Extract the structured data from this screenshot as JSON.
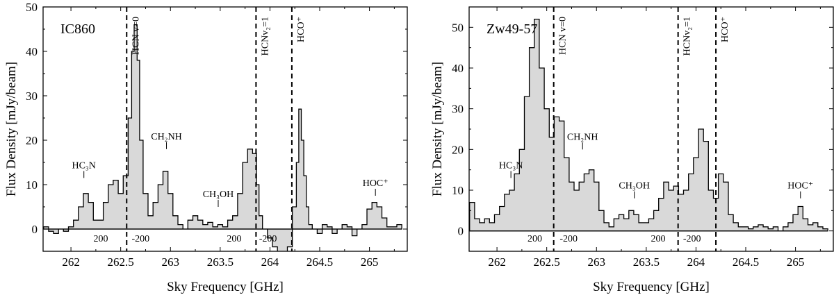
{
  "chart_data": [
    {
      "type": "step",
      "title": "IC860",
      "xlabel": "Sky Frequency [GHz]",
      "ylabel": "Flux Density [mJy/beam]",
      "xlim": [
        261.72,
        265.38
      ],
      "ylim": [
        -5,
        50
      ],
      "xticks": [
        262,
        262.5,
        263,
        263.5,
        264,
        264.5,
        265
      ],
      "xtick_labels": [
        "262",
        "262.5",
        "263",
        "263.5",
        "264",
        "264.5",
        "265"
      ],
      "yticks": [
        0,
        10,
        20,
        30,
        40,
        50
      ],
      "ytick_labels": [
        "0",
        "10",
        "20",
        "30",
        "40",
        "50"
      ],
      "spectrum": {
        "x": [
          261.75,
          261.8,
          261.85,
          261.9,
          261.95,
          262.0,
          262.05,
          262.1,
          262.15,
          262.2,
          262.25,
          262.3,
          262.35,
          262.4,
          262.45,
          262.5,
          262.55,
          262.6,
          262.62,
          262.65,
          262.68,
          262.7,
          262.75,
          262.8,
          262.85,
          262.9,
          262.95,
          263.0,
          263.05,
          263.1,
          263.15,
          263.2,
          263.25,
          263.3,
          263.35,
          263.4,
          263.45,
          263.5,
          263.55,
          263.6,
          263.65,
          263.7,
          263.75,
          263.8,
          263.85,
          263.88,
          263.9,
          263.95,
          264.0,
          264.05,
          264.1,
          264.15,
          264.2,
          264.25,
          264.28,
          264.3,
          264.33,
          264.35,
          264.38,
          264.4,
          264.45,
          264.5,
          264.55,
          264.6,
          264.65,
          264.7,
          264.75,
          264.8,
          264.85,
          264.9,
          264.95,
          265.0,
          265.05,
          265.1,
          265.15,
          265.2,
          265.25,
          265.3
        ],
        "y": [
          0.5,
          -0.5,
          -1,
          0,
          -0.5,
          0.5,
          2,
          5,
          8,
          6,
          2,
          2,
          6,
          10,
          11,
          8,
          12,
          25,
          40,
          46,
          38,
          20,
          8,
          3,
          6,
          10,
          13,
          8,
          3,
          1,
          0,
          2,
          3,
          2,
          1,
          1.5,
          0.5,
          1,
          0.5,
          2,
          3,
          8,
          15,
          18,
          17,
          10,
          3,
          0,
          -2,
          -4,
          -6,
          -6,
          -4,
          5,
          15,
          27,
          20,
          12,
          5,
          1,
          0,
          -1,
          1,
          0.5,
          -1,
          0,
          1,
          0.5,
          -1.5,
          0,
          1,
          4.5,
          6,
          5,
          2.5,
          0.5,
          0.5,
          1
        ]
      },
      "dashed_lines_x": [
        262.56,
        263.86,
        264.22
      ],
      "vertical_labels": [
        {
          "text": "HCN v=0",
          "x": 262.56
        },
        {
          "text": "HCNv₂=1",
          "x": 263.86
        },
        {
          "text": "HCO⁺",
          "x": 264.22
        }
      ],
      "line_labels": [
        {
          "text": "HC₃N",
          "x": 262.13,
          "y": 11.5
        },
        {
          "text": "CH₂NH",
          "x": 262.96,
          "y": 18
        },
        {
          "text": "CH₃OH",
          "x": 263.48,
          "y": 5
        },
        {
          "text": "HOC⁺",
          "x": 265.06,
          "y": 7.5
        }
      ],
      "velocity_labels": [
        {
          "text": "200",
          "x": 262.3
        },
        {
          "text": "-200",
          "x": 262.7
        },
        {
          "text": "200",
          "x": 263.64
        },
        {
          "text": "-200",
          "x": 263.98
        }
      ]
    },
    {
      "type": "step",
      "title": "Zw49-57",
      "xlabel": "Sky Frequency [GHz]",
      "ylabel": "Flux Density [mJy/beam]",
      "xlim": [
        261.72,
        265.38
      ],
      "ylim": [
        -5,
        55
      ],
      "xticks": [
        262,
        262.5,
        263,
        263.5,
        264,
        264.5,
        265
      ],
      "xtick_labels": [
        "262",
        "262.5",
        "263",
        "263.5",
        "264",
        "264.5",
        "265"
      ],
      "yticks": [
        0,
        10,
        20,
        30,
        40,
        50
      ],
      "ytick_labels": [
        "0",
        "10",
        "20",
        "30",
        "40",
        "50"
      ],
      "spectrum": {
        "x": [
          261.75,
          261.8,
          261.85,
          261.9,
          261.95,
          262.0,
          262.05,
          262.1,
          262.15,
          262.2,
          262.25,
          262.3,
          262.35,
          262.4,
          262.45,
          262.5,
          262.55,
          262.6,
          262.65,
          262.7,
          262.75,
          262.8,
          262.85,
          262.9,
          262.95,
          263.0,
          263.05,
          263.1,
          263.15,
          263.2,
          263.25,
          263.3,
          263.35,
          263.4,
          263.45,
          263.5,
          263.55,
          263.6,
          263.65,
          263.7,
          263.75,
          263.8,
          263.85,
          263.9,
          263.95,
          264.0,
          264.05,
          264.1,
          264.15,
          264.2,
          264.25,
          264.3,
          264.35,
          264.4,
          264.45,
          264.5,
          264.55,
          264.6,
          264.65,
          264.7,
          264.75,
          264.8,
          264.85,
          264.9,
          264.95,
          265.0,
          265.05,
          265.1,
          265.15,
          265.2,
          265.25,
          265.3
        ],
        "y": [
          7,
          3,
          2,
          3,
          2,
          4,
          6,
          9,
          10,
          14,
          20,
          33,
          45,
          52,
          40,
          30,
          23,
          28,
          27,
          18,
          12,
          10,
          12,
          14,
          15,
          12,
          5,
          2,
          1,
          3,
          4,
          3,
          5,
          4,
          2,
          2,
          3,
          5,
          8,
          12,
          10,
          11,
          9,
          10,
          14,
          18,
          25,
          22,
          10,
          8,
          14,
          12,
          4,
          2,
          1,
          1,
          0.5,
          1,
          1.5,
          1,
          0.5,
          1,
          0,
          1,
          2,
          4,
          6,
          3,
          1.5,
          2,
          1,
          0.5
        ]
      },
      "dashed_lines_x": [
        262.57,
        263.82,
        264.2
      ],
      "vertical_labels": [
        {
          "text": "HCN v=0",
          "x": 262.57
        },
        {
          "text": "HCNv₂=1",
          "x": 263.82
        },
        {
          "text": "HCO⁺",
          "x": 264.2
        }
      ],
      "line_labels": [
        {
          "text": "HC₃N",
          "x": 262.14,
          "y": 13
        },
        {
          "text": "CH₂NH",
          "x": 262.86,
          "y": 20
        },
        {
          "text": "CH₃OH",
          "x": 263.38,
          "y": 8
        },
        {
          "text": "HOC⁺",
          "x": 265.05,
          "y": 8
        }
      ],
      "velocity_labels": [
        {
          "text": "200",
          "x": 262.38
        },
        {
          "text": "-200",
          "x": 262.72
        },
        {
          "text": "200",
          "x": 263.62
        },
        {
          "text": "-200",
          "x": 263.96
        }
      ]
    }
  ]
}
